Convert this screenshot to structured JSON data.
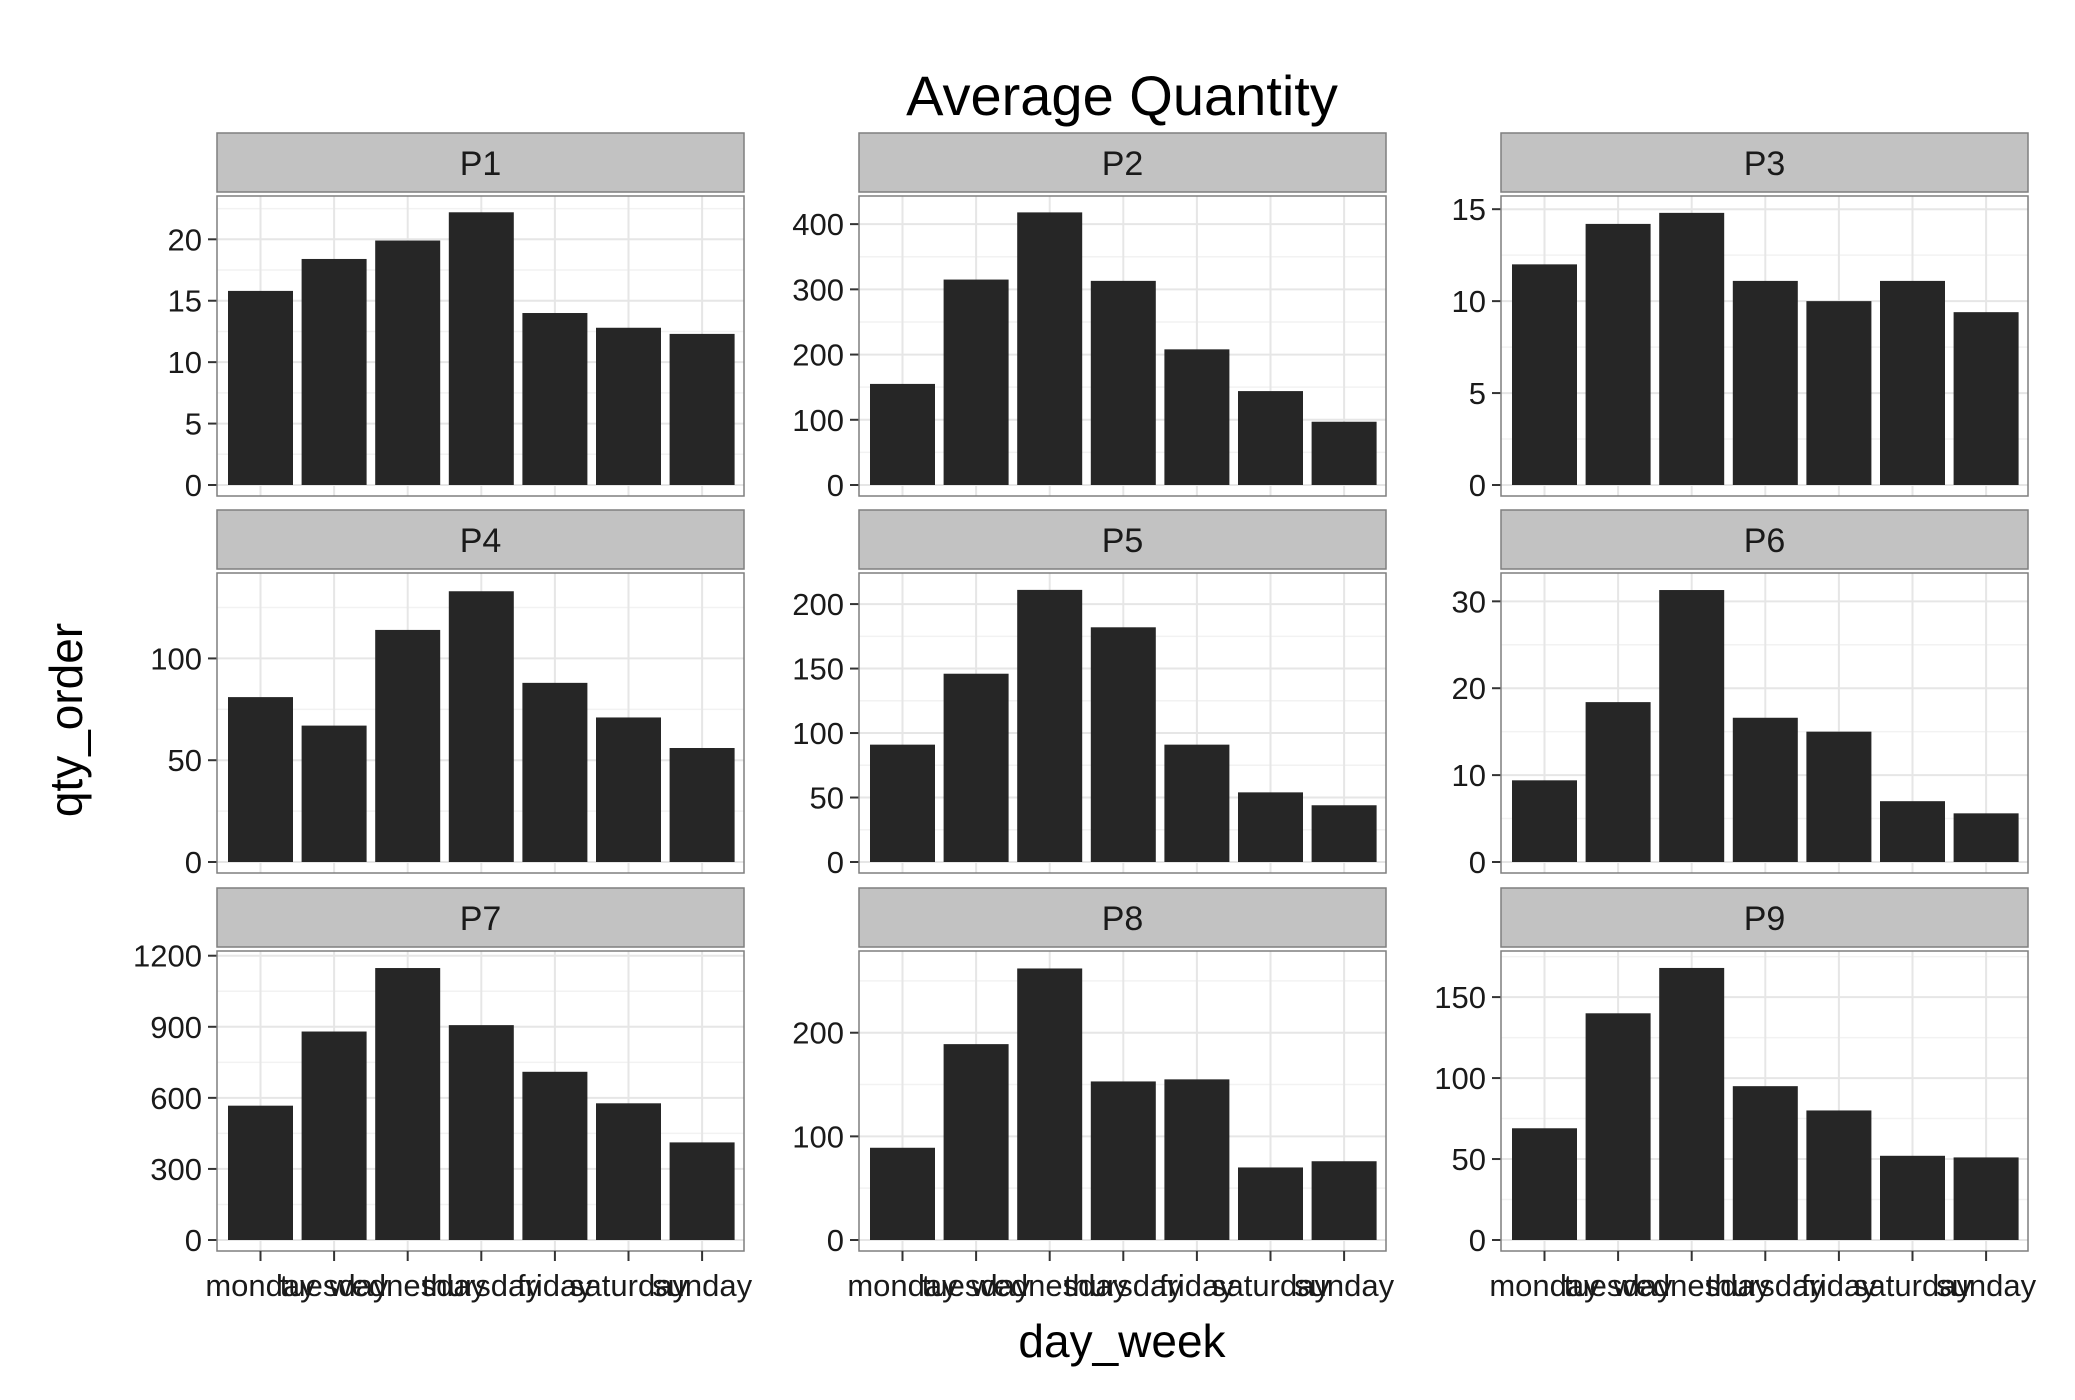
{
  "chart_data": {
    "type": "bar",
    "title": "Average Quantity",
    "xlabel": "day_week",
    "ylabel": "qty_order",
    "grid": true,
    "categories": [
      "monday",
      "tuesday",
      "wednesday",
      "thursday",
      "friday",
      "saturday",
      "sunday"
    ],
    "colors": {
      "bar": "#262626",
      "strip": "#c2c2c2",
      "grid": "#e6e6e6",
      "panel_border": "#7f7f7f"
    },
    "panels": [
      {
        "name": "P1",
        "values": [
          15.8,
          18.4,
          19.9,
          22.2,
          14.0,
          12.8,
          12.3
        ],
        "ylim": [
          0,
          23.2
        ],
        "yticks": [
          0,
          5,
          10,
          15,
          20
        ]
      },
      {
        "name": "P2",
        "values": [
          155,
          315,
          418,
          313,
          208,
          144,
          97
        ],
        "ylim": [
          0,
          437
        ],
        "yticks": [
          0,
          100,
          200,
          300,
          400
        ]
      },
      {
        "name": "P3",
        "values": [
          12.0,
          14.2,
          14.8,
          11.1,
          10.0,
          11.1,
          9.4
        ],
        "ylim": [
          0,
          15.5
        ],
        "yticks": [
          0,
          5,
          10,
          15
        ]
      },
      {
        "name": "P4",
        "values": [
          81,
          67,
          114,
          133,
          88,
          71,
          56
        ],
        "ylim": [
          0,
          140
        ],
        "yticks": [
          0,
          50,
          100
        ]
      },
      {
        "name": "P5",
        "values": [
          91,
          146,
          211,
          182,
          91,
          54,
          44
        ],
        "ylim": [
          0,
          221
        ],
        "yticks": [
          0,
          50,
          100,
          150,
          200
        ]
      },
      {
        "name": "P6",
        "values": [
          9.4,
          18.4,
          31.3,
          16.6,
          15.0,
          7.0,
          5.6
        ],
        "ylim": [
          0,
          32.8
        ],
        "yticks": [
          0,
          10,
          20,
          30
        ]
      },
      {
        "name": "P7",
        "values": [
          567,
          880,
          1148,
          907,
          710,
          577,
          412
        ],
        "ylim": [
          0,
          1203
        ],
        "yticks": [
          0,
          300,
          600,
          900,
          1200
        ]
      },
      {
        "name": "P8",
        "values": [
          89,
          189,
          262,
          153,
          155,
          70,
          76
        ],
        "ylim": [
          0,
          275
        ],
        "yticks": [
          0,
          100,
          200
        ]
      },
      {
        "name": "P9",
        "values": [
          69,
          140,
          168,
          95,
          80,
          52,
          51
        ],
        "ylim": [
          0,
          176
        ],
        "yticks": [
          0,
          50,
          100,
          150
        ]
      }
    ]
  }
}
